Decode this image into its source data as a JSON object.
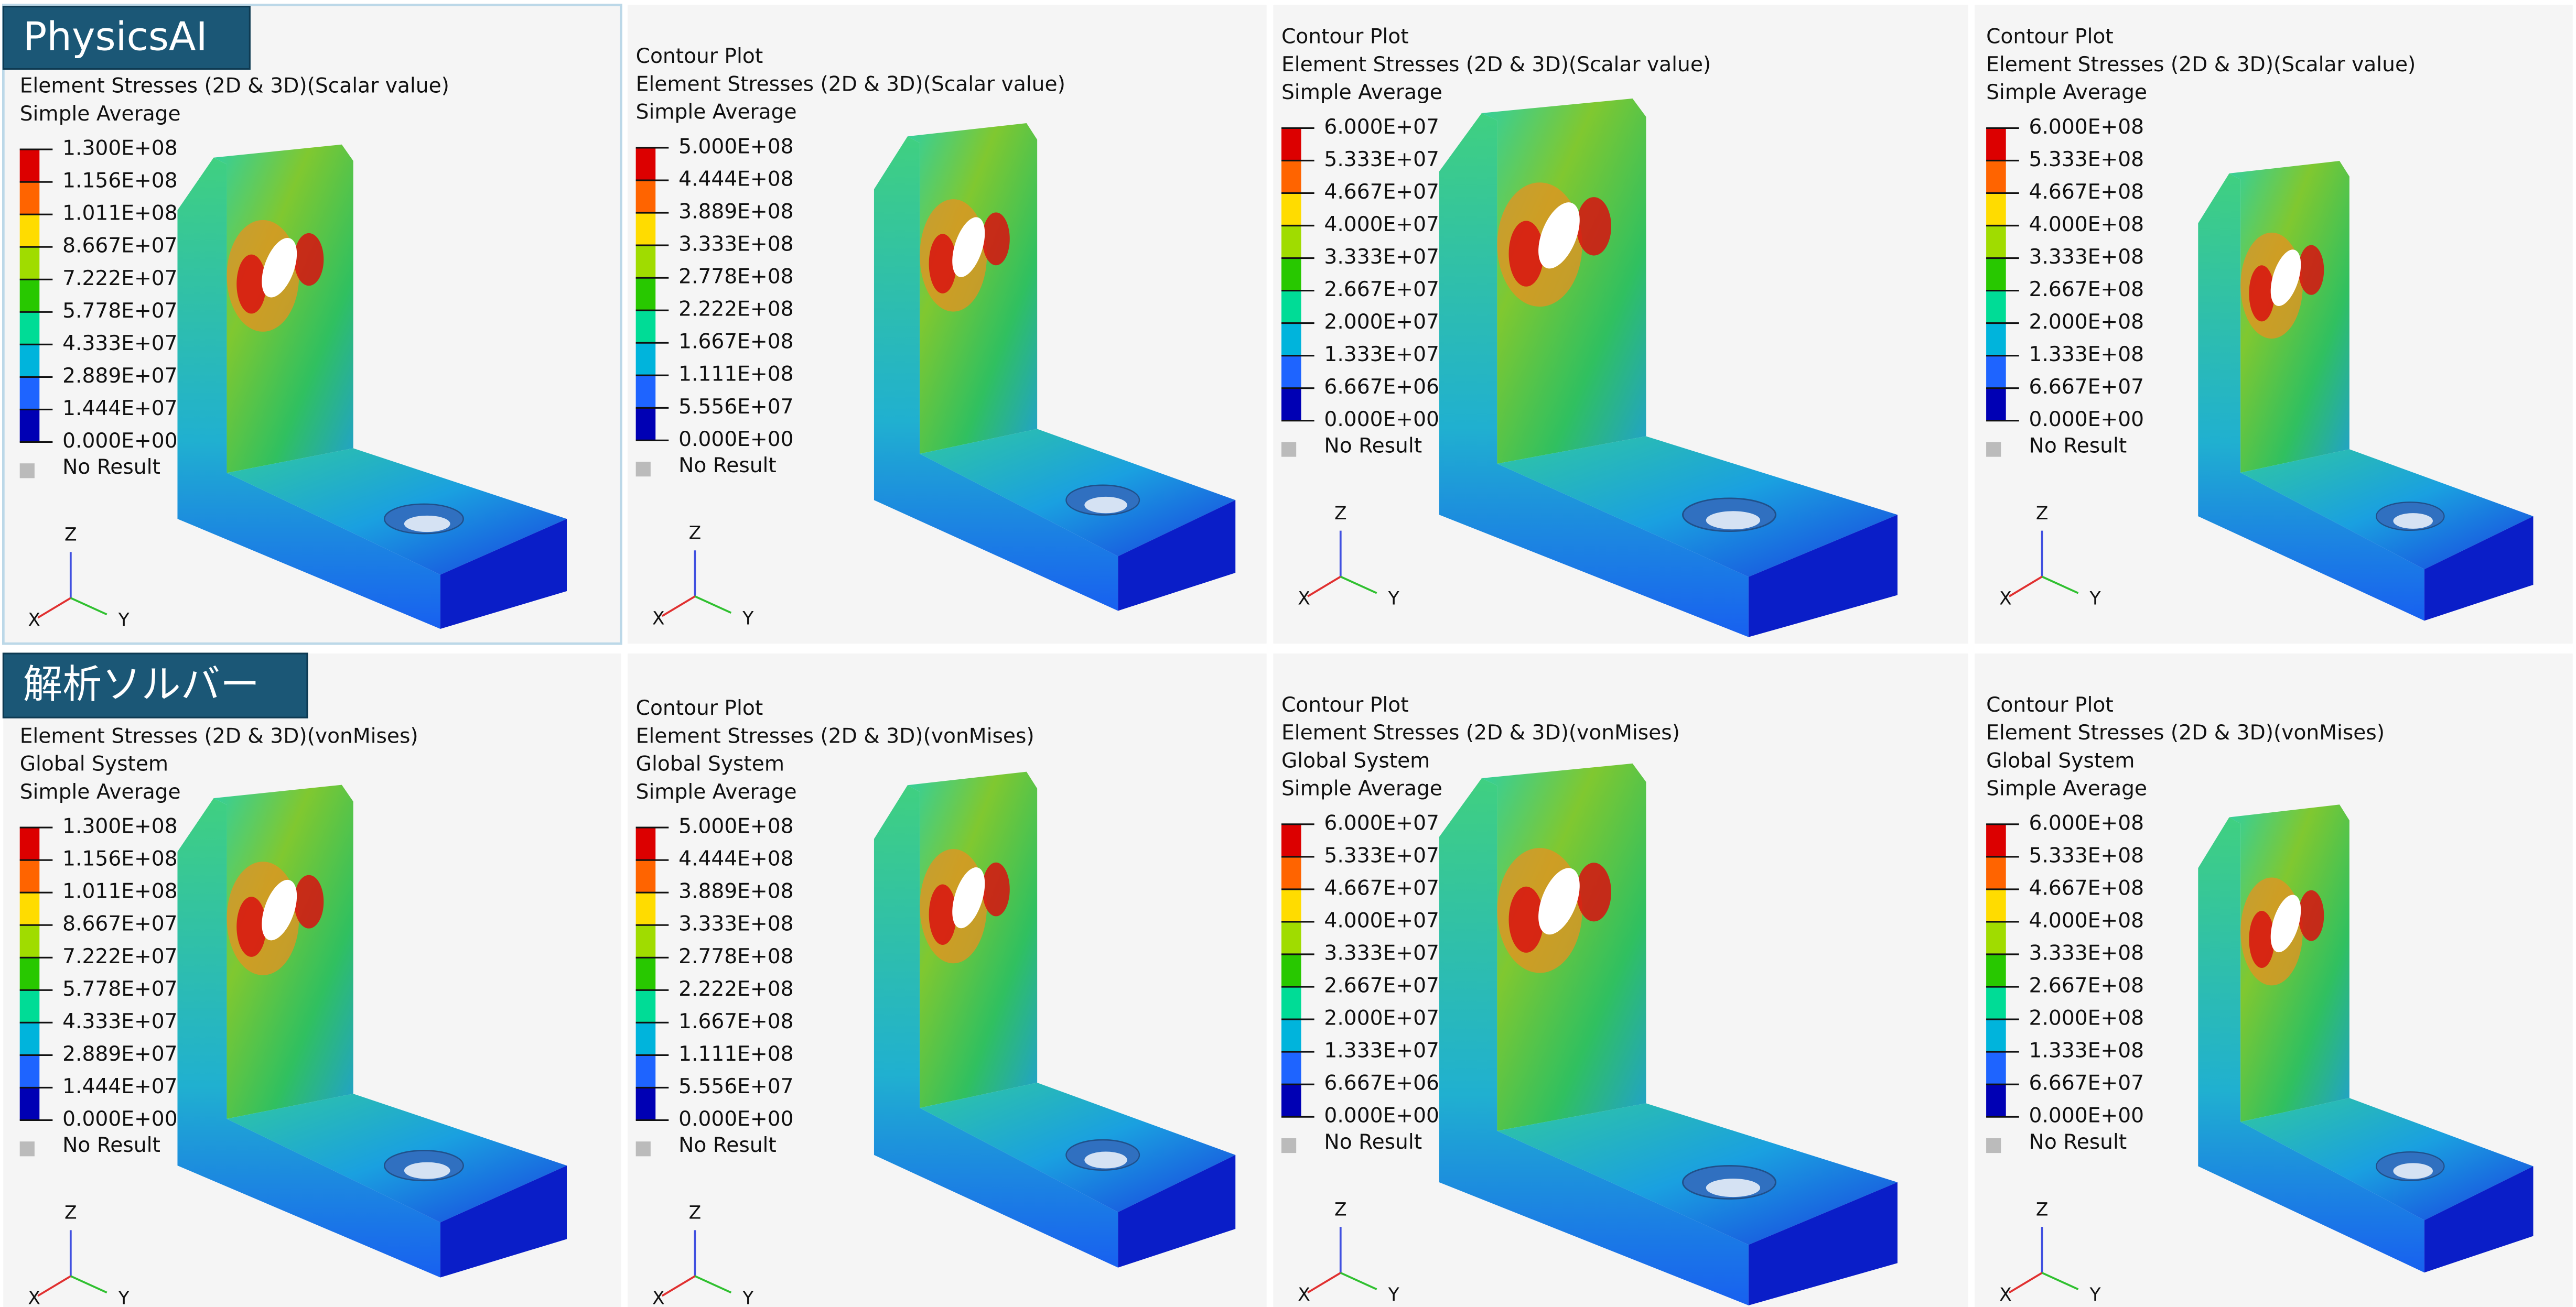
{
  "rows": [
    {
      "label": "PhysicsAI",
      "panels": [
        {
          "header": [
            "Element Stresses (2D & 3D)(Scalar value)",
            "Simple Average"
          ],
          "legend": [
            "1.300E+08",
            "1.156E+08",
            "1.011E+08",
            "8.667E+07",
            "7.222E+07",
            "5.778E+07",
            "4.333E+07",
            "2.889E+07",
            "1.444E+07",
            "0.000E+00"
          ],
          "no_result": "No Result",
          "axes": {
            "z": "Z",
            "x": "X",
            "y": "Y"
          }
        },
        {
          "header": [
            "Contour Plot",
            "Element Stresses (2D & 3D)(Scalar value)",
            "Simple Average"
          ],
          "legend": [
            "5.000E+08",
            "4.444E+08",
            "3.889E+08",
            "3.333E+08",
            "2.778E+08",
            "2.222E+08",
            "1.667E+08",
            "1.111E+08",
            "5.556E+07",
            "0.000E+00"
          ],
          "no_result": "No Result",
          "axes": {
            "z": "Z",
            "x": "X",
            "y": "Y"
          }
        },
        {
          "header": [
            "Contour Plot",
            "Element Stresses (2D & 3D)(Scalar value)",
            "Simple Average"
          ],
          "legend": [
            "6.000E+07",
            "5.333E+07",
            "4.667E+07",
            "4.000E+07",
            "3.333E+07",
            "2.667E+07",
            "2.000E+07",
            "1.333E+07",
            "6.667E+06",
            "0.000E+00"
          ],
          "no_result": "No Result",
          "axes": {
            "z": "Z",
            "x": "X",
            "y": "Y"
          }
        },
        {
          "header": [
            "Contour Plot",
            "Element Stresses (2D & 3D)(Scalar value)",
            "Simple Average"
          ],
          "legend": [
            "6.000E+08",
            "5.333E+08",
            "4.667E+08",
            "4.000E+08",
            "3.333E+08",
            "2.667E+08",
            "2.000E+08",
            "1.333E+08",
            "6.667E+07",
            "0.000E+00"
          ],
          "no_result": "No Result",
          "axes": {
            "z": "Z",
            "x": "X",
            "y": "Y"
          }
        }
      ]
    },
    {
      "label": "解析ソルバー",
      "panels": [
        {
          "header": [
            "Element Stresses (2D & 3D)(vonMises)",
            "Global System",
            "Simple Average"
          ],
          "legend": [
            "1.300E+08",
            "1.156E+08",
            "1.011E+08",
            "8.667E+07",
            "7.222E+07",
            "5.778E+07",
            "4.333E+07",
            "2.889E+07",
            "1.444E+07",
            "0.000E+00"
          ],
          "no_result": "No Result",
          "axes": {
            "z": "Z",
            "x": "X",
            "y": "Y"
          }
        },
        {
          "header": [
            "Contour Plot",
            "Element Stresses (2D & 3D)(vonMises)",
            "Global System",
            "Simple Average"
          ],
          "legend": [
            "5.000E+08",
            "4.444E+08",
            "3.889E+08",
            "3.333E+08",
            "2.778E+08",
            "2.222E+08",
            "1.667E+08",
            "1.111E+08",
            "5.556E+07",
            "0.000E+00"
          ],
          "no_result": "No Result",
          "axes": {
            "z": "Z",
            "x": "X",
            "y": "Y"
          }
        },
        {
          "header": [
            "Contour Plot",
            "Element Stresses (2D & 3D)(vonMises)",
            "Global System",
            "Simple Average"
          ],
          "legend": [
            "6.000E+07",
            "5.333E+07",
            "4.667E+07",
            "4.000E+07",
            "3.333E+07",
            "2.667E+07",
            "2.000E+07",
            "1.333E+07",
            "6.667E+06",
            "0.000E+00"
          ],
          "no_result": "No Result",
          "axes": {
            "z": "Z",
            "x": "X",
            "y": "Y"
          }
        },
        {
          "header": [
            "Contour Plot",
            "Element Stresses (2D & 3D)(vonMises)",
            "Global System",
            "Simple Average"
          ],
          "legend": [
            "6.000E+08",
            "5.333E+08",
            "4.667E+08",
            "4.000E+08",
            "3.333E+08",
            "2.667E+08",
            "2.000E+08",
            "1.333E+08",
            "6.667E+07",
            "0.000E+00"
          ],
          "no_result": "No Result",
          "axes": {
            "z": "Z",
            "x": "X",
            "y": "Y"
          }
        }
      ]
    }
  ]
}
